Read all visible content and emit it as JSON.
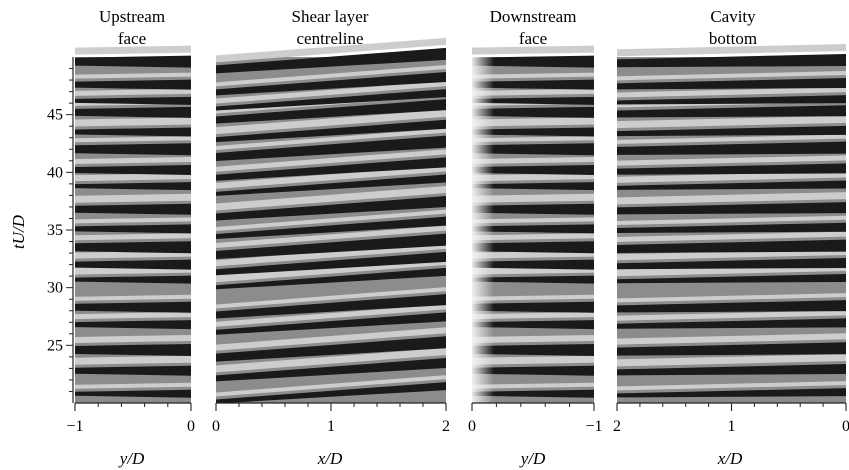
{
  "chart_data": {
    "type": "heatmap",
    "colormap": "grayscale",
    "y_axis": {
      "label": "tU/D",
      "range": [
        20,
        50
      ],
      "ticks": [
        25,
        30,
        35,
        40,
        45
      ],
      "tick_labels": [
        "25",
        "30",
        "35",
        "40",
        "45"
      ]
    },
    "band_times": [
      20.8,
      22.8,
      24.6,
      26.8,
      28.3,
      30.7,
      32.0,
      33.5,
      35.1,
      36.8,
      38.8,
      40.2,
      42.0,
      43.5,
      45.2,
      46.2,
      47.6,
      49.6
    ],
    "panels": [
      {
        "title_line1": "Upstream",
        "title_line2": "face",
        "xlabel": "y/D",
        "xlim": [
          -1,
          0
        ],
        "x_ticks": [
          "−1",
          "0"
        ],
        "drift": 0
      },
      {
        "title_line1": "Shear layer",
        "title_line2": "centreline",
        "xlabel": "x/D",
        "xlim": [
          0,
          2
        ],
        "x_ticks": [
          "0",
          "1",
          "2"
        ],
        "drift": 1.4
      },
      {
        "title_line1": "Downstream",
        "title_line2": "face",
        "xlabel": "y/D",
        "xlim": [
          0,
          -1
        ],
        "x_ticks": [
          "0",
          "−1"
        ],
        "drift": 0
      },
      {
        "title_line1": "Cavity",
        "title_line2": "bottom",
        "xlabel": "x/D",
        "xlim": [
          2,
          0
        ],
        "x_ticks": [
          "2",
          "1",
          "0"
        ],
        "drift": 0.3
      }
    ]
  }
}
